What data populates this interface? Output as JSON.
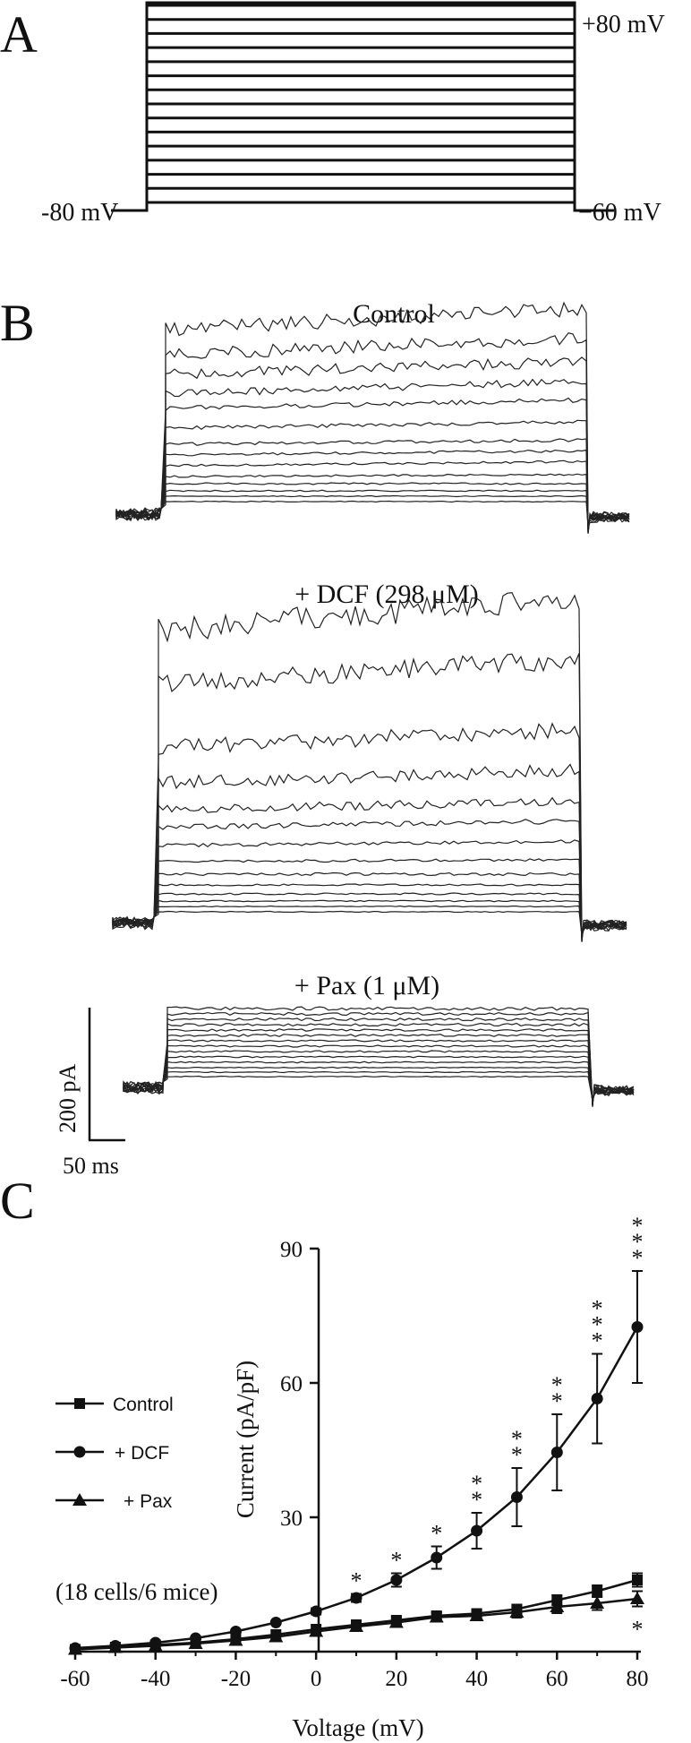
{
  "panels": {
    "a": {
      "letter": "A",
      "top_label": "+80 mV",
      "hold_label": "-80 mV",
      "bottom_step_label": "−60  mV",
      "step_count": 15
    },
    "b": {
      "letter": "B",
      "traces": [
        {
          "title": "Control"
        },
        {
          "title": "+ DCF (298 μM)"
        },
        {
          "title": "+ Pax (1 μM)"
        }
      ],
      "scale_current": "200 pA",
      "scale_time": "50 ms"
    },
    "c": {
      "letter": "C",
      "note": "(18 cells/6 mice)"
    }
  },
  "chart_data": {
    "type": "line",
    "xlabel": "Voltage (mV)",
    "ylabel": "Current (pA/pF)",
    "xlim": [
      -60,
      80
    ],
    "ylim": [
      0,
      90
    ],
    "xticks": [
      "-60",
      "-40",
      "-20",
      "0",
      "20",
      "40",
      "60",
      "80"
    ],
    "yticks": [
      "30",
      "60",
      "90"
    ],
    "x": [
      -60,
      -50,
      -40,
      -30,
      -20,
      -10,
      0,
      10,
      20,
      30,
      40,
      50,
      60,
      70,
      80
    ],
    "series": [
      {
        "name": "Control",
        "marker": "square",
        "values": [
          0.5,
          1.0,
          1.5,
          2.0,
          2.8,
          3.8,
          5.0,
          6.0,
          7.0,
          8.0,
          8.5,
          9.5,
          11.5,
          13.5,
          16.0
        ],
        "errors": [
          0.2,
          0.2,
          0.3,
          0.3,
          0.4,
          0.5,
          0.6,
          0.7,
          0.8,
          0.8,
          0.9,
          1.0,
          1.1,
          1.3,
          1.5
        ]
      },
      {
        "name": "+ DCF",
        "marker": "circle",
        "values": [
          0.8,
          1.3,
          2.0,
          3.0,
          4.5,
          6.5,
          9.0,
          12.0,
          16.0,
          21.0,
          27.0,
          34.5,
          44.5,
          56.5,
          72.5
        ],
        "errors": [
          0.2,
          0.3,
          0.3,
          0.4,
          0.5,
          0.6,
          0.7,
          0.9,
          1.5,
          2.5,
          4.0,
          6.5,
          8.5,
          10.0,
          12.5
        ]
      },
      {
        "name": "+ Pax",
        "marker": "triangle",
        "values": [
          0.5,
          0.9,
          1.3,
          1.8,
          2.5,
          3.3,
          4.5,
          5.6,
          6.5,
          7.7,
          8.0,
          8.8,
          10.0,
          10.8,
          11.8
        ],
        "errors": [
          0.2,
          0.2,
          0.2,
          0.3,
          0.3,
          0.4,
          0.5,
          0.6,
          0.8,
          0.9,
          1.0,
          1.2,
          1.4,
          1.5,
          1.7
        ]
      }
    ],
    "significance": [
      {
        "x": 10,
        "text": "*",
        "count": 1
      },
      {
        "x": 20,
        "text": "*",
        "count": 1
      },
      {
        "x": 30,
        "text": "*",
        "count": 1
      },
      {
        "x": 40,
        "text": "**",
        "count": 2
      },
      {
        "x": 50,
        "text": "**",
        "count": 2
      },
      {
        "x": 60,
        "text": "**",
        "count": 2
      },
      {
        "x": 70,
        "text": "***",
        "count": 3
      },
      {
        "x": 80,
        "text": "***",
        "count": 3
      },
      {
        "x": 80,
        "text": "*",
        "count": 1,
        "series": "+ Pax"
      }
    ],
    "legend_position": "left"
  }
}
